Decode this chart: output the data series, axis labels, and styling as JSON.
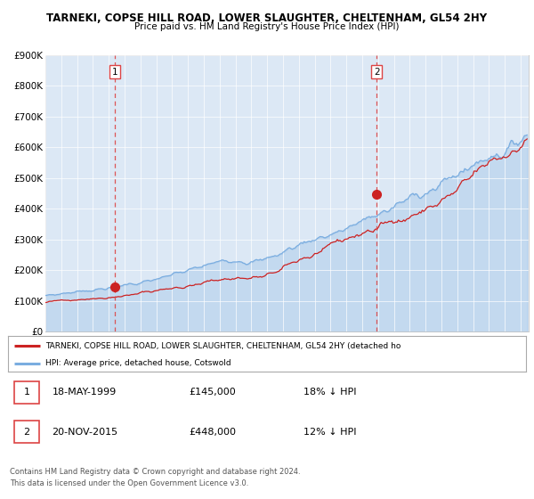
{
  "title_line1": "TARNEKI, COPSE HILL ROAD, LOWER SLAUGHTER, CHELTENHAM, GL54 2HY",
  "title_line2": "Price paid vs. HM Land Registry's House Price Index (HPI)",
  "plot_bg_color": "#dce8f5",
  "ylim": [
    0,
    900000
  ],
  "yticks": [
    0,
    100000,
    200000,
    300000,
    400000,
    500000,
    600000,
    700000,
    800000,
    900000
  ],
  "ytick_labels": [
    "£0",
    "£100K",
    "£200K",
    "£300K",
    "£400K",
    "£500K",
    "£600K",
    "£700K",
    "£800K",
    "£900K"
  ],
  "xlim_start": 1995.0,
  "xlim_end": 2025.5,
  "hpi_color": "#7aade0",
  "price_color": "#cc2222",
  "vline_color": "#dd4444",
  "marker1_x": 1999.38,
  "marker1_y": 145000,
  "marker2_x": 2015.9,
  "marker2_y": 448000,
  "legend_label1": "TARNEKI, COPSE HILL ROAD, LOWER SLAUGHTER, CHELTENHAM, GL54 2HY (detached ho",
  "legend_label2": "HPI: Average price, detached house, Cotswold",
  "note1_date": "18-MAY-1999",
  "note1_price": "£145,000",
  "note1_hpi": "18% ↓ HPI",
  "note2_date": "20-NOV-2015",
  "note2_price": "£448,000",
  "note2_hpi": "12% ↓ HPI",
  "footer1": "Contains HM Land Registry data © Crown copyright and database right 2024.",
  "footer2": "This data is licensed under the Open Government Licence v3.0."
}
